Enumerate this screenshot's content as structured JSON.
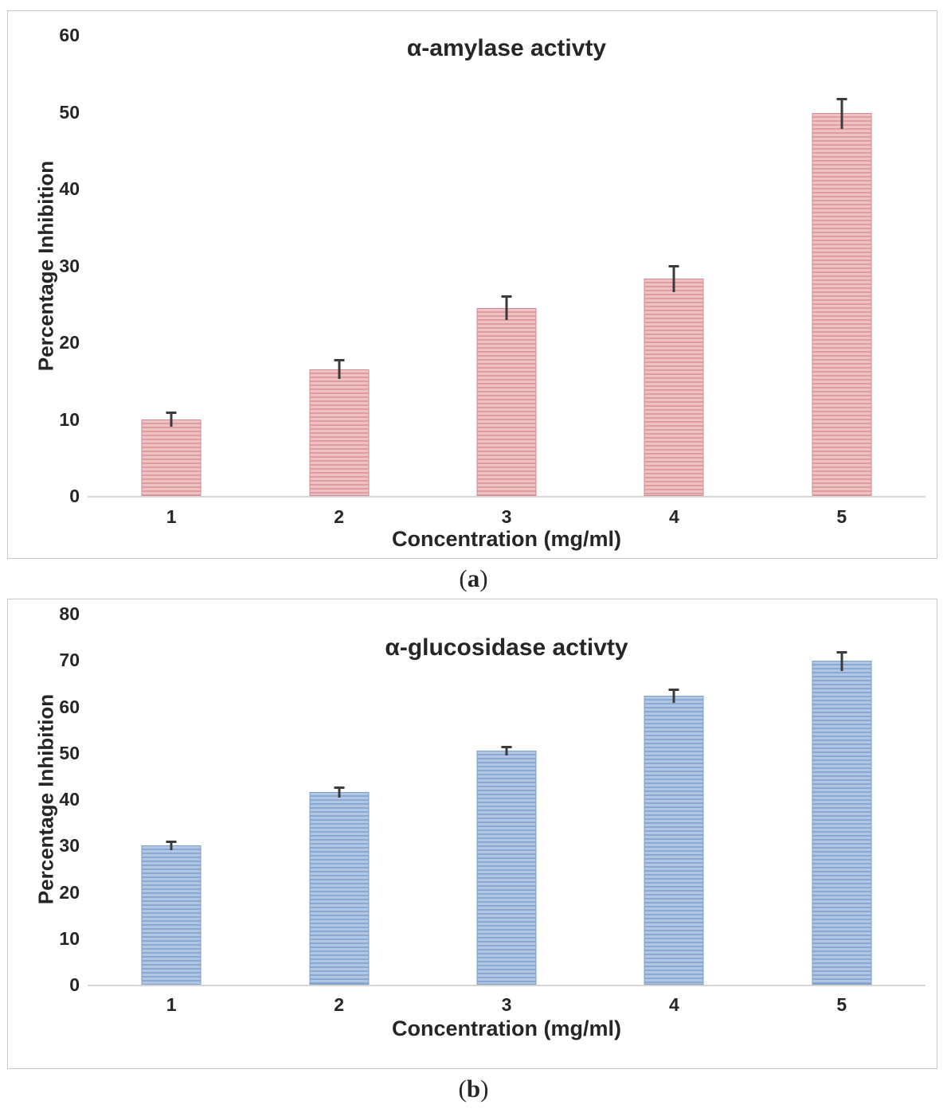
{
  "chart_data": [
    {
      "type": "bar",
      "panel": "a",
      "title": "α-amylase activty",
      "xlabel": "Concentration (mg/ml)",
      "ylabel": "Percentage Inhibition",
      "categories": [
        "1",
        "2",
        "3",
        "4",
        "5"
      ],
      "values": [
        10,
        16.5,
        24.5,
        28.3,
        49.8
      ],
      "errors": [
        1.0,
        1.3,
        1.6,
        1.8,
        2.0
      ],
      "ylim": [
        0,
        60
      ],
      "ytick_step": 10,
      "grid": false,
      "legend_position": "none",
      "bar_stripe_light": "#eec2c3",
      "bar_stripe_dark": "#df9da1",
      "bar_edge": "#d18a8f",
      "error_color": "#3b3b3b",
      "axis_line_color": "#d6d4d4"
    },
    {
      "type": "bar",
      "panel": "b",
      "title": "α-glucosidase activty",
      "xlabel": "Concentration (mg/ml)",
      "ylabel": "Percentage Inhibition",
      "categories": [
        "1",
        "2",
        "3",
        "4",
        "5"
      ],
      "values": [
        30,
        41.5,
        50.5,
        62.3,
        69.8
      ],
      "errors": [
        1.0,
        1.2,
        1.0,
        1.5,
        2.2
      ],
      "ylim": [
        0,
        80
      ],
      "ytick_step": 10,
      "grid": false,
      "legend_position": "none",
      "bar_stripe_light": "#b0c6e2",
      "bar_stripe_dark": "#87a9d3",
      "bar_edge": "#7d9fc7",
      "error_color": "#3b3b3b",
      "axis_line_color": "#d6d4d4"
    }
  ],
  "captions": {
    "a": {
      "open": "(",
      "letter": "a",
      "close": ")"
    },
    "b": {
      "open": "(",
      "letter": "b",
      "close": ")"
    }
  }
}
